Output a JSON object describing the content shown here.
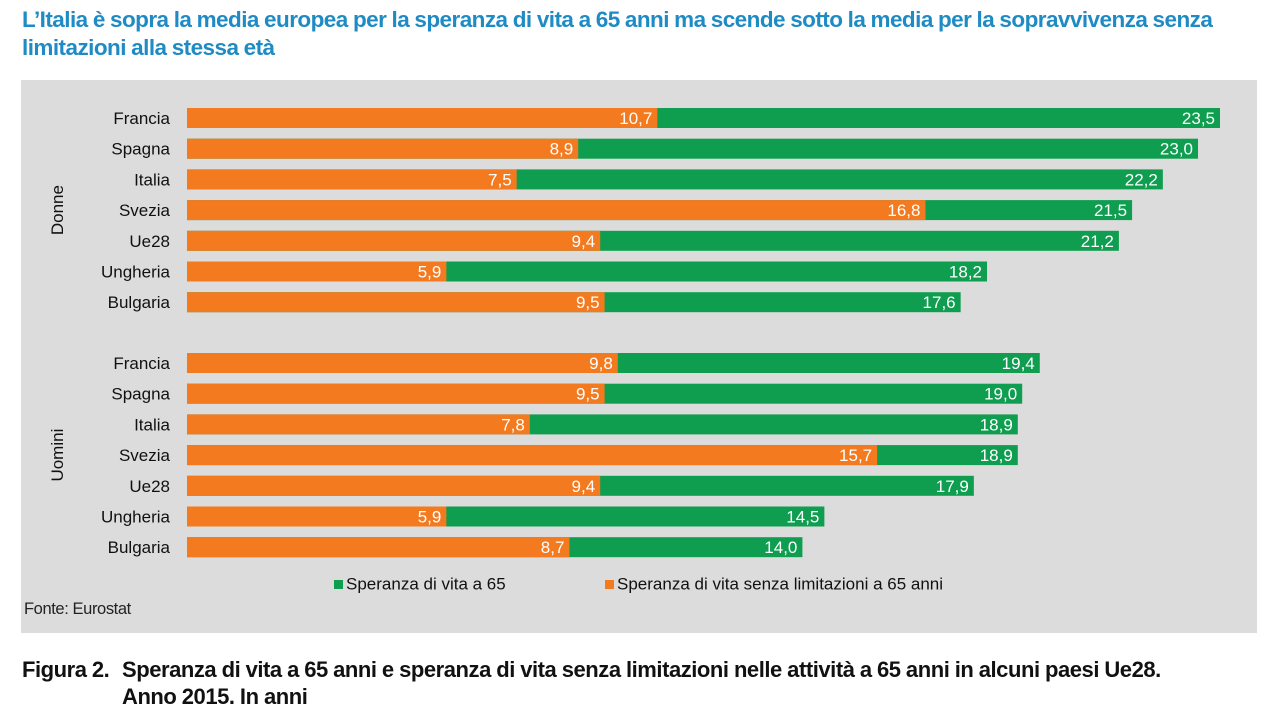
{
  "headline": "L’Italia è sopra la media europea per la speranza di vita a 65 anni ma scende sotto la media per la sopravvivenza senza limitazioni alla stessa età",
  "source": "Fonte: Eurostat",
  "caption": {
    "number": "Figura 2.",
    "line1": "Speranza di vita a 65 anni e speranza di vita senza limitazioni nelle attività a 65 anni in alcuni paesi Ue28.",
    "line2": "Anno 2015. In anni"
  },
  "colors": {
    "life_expectancy": "#0f9d4f",
    "healthy_life": "#f47a20",
    "panel": "#dcdcdc",
    "headline": "#1f8bc4"
  },
  "chart_data": {
    "type": "bar",
    "orientation": "horizontal",
    "xlim": [
      0,
      23.5
    ],
    "grid": false,
    "legend_position": "bottom",
    "groups": [
      {
        "name": "Donne",
        "categories": [
          "Francia",
          "Spagna",
          "Italia",
          "Svezia",
          "Ue28",
          "Ungheria",
          "Bulgaria"
        ],
        "series": [
          {
            "name": "Speranza di vita a 65",
            "values": [
              23.5,
              23.0,
              22.2,
              21.5,
              21.2,
              18.2,
              17.6
            ],
            "labels": [
              "23,5",
              "23,0",
              "22,2",
              "21,5",
              "21,2",
              "18,2",
              "17,6"
            ]
          },
          {
            "name": "Speranza di vita senza limitazioni a 65 anni",
            "values": [
              10.7,
              8.9,
              7.5,
              16.8,
              9.4,
              5.9,
              9.5
            ],
            "labels": [
              "10,7",
              "8,9",
              "7,5",
              "16,8",
              "9,4",
              "5,9",
              "9,5"
            ]
          }
        ]
      },
      {
        "name": "Uomini",
        "categories": [
          "Francia",
          "Spagna",
          "Italia",
          "Svezia",
          "Ue28",
          "Ungheria",
          "Bulgaria"
        ],
        "series": [
          {
            "name": "Speranza di vita a 65",
            "values": [
              19.4,
              19.0,
              18.9,
              18.9,
              17.9,
              14.5,
              14.0
            ],
            "labels": [
              "19,4",
              "19,0",
              "18,9",
              "18,9",
              "17,9",
              "14,5",
              "14,0"
            ]
          },
          {
            "name": "Speranza di vita senza limitazioni a 65 anni",
            "values": [
              9.8,
              9.5,
              7.8,
              15.7,
              9.4,
              5.9,
              8.7
            ],
            "labels": [
              "9,8",
              "9,5",
              "7,8",
              "15,7",
              "9,4",
              "5,9",
              "8,7"
            ]
          }
        ]
      }
    ],
    "legend": [
      "Speranza di vita a 65",
      "Speranza di vita senza limitazioni a 65 anni"
    ]
  }
}
